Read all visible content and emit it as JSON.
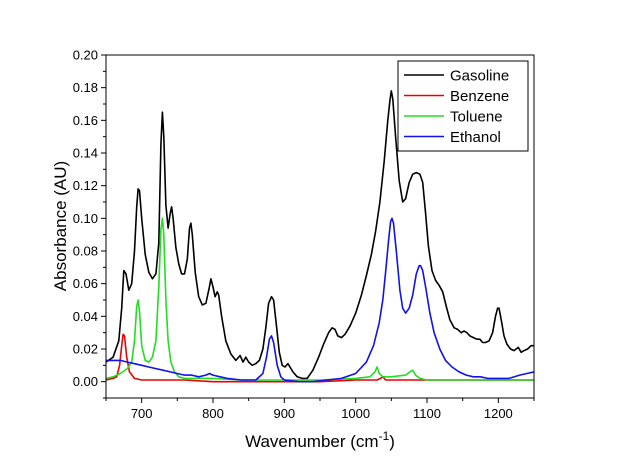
{
  "chart_data": {
    "type": "line",
    "title": "",
    "xlabel": "Wavenumber (cm",
    "xlabel_sup": "-1",
    "xlabel_end": ")",
    "ylabel": "Absorbance (AU)",
    "xlim": [
      650,
      1250
    ],
    "ylim": [
      -0.01,
      0.2
    ],
    "x_ticks": [
      700,
      800,
      900,
      1000,
      1100,
      1200
    ],
    "x_tick_labels": [
      "700",
      "800",
      "900",
      "1000",
      "1100",
      "1200"
    ],
    "y_ticks": [
      0.0,
      0.02,
      0.04,
      0.06,
      0.08,
      0.1,
      0.12,
      0.14,
      0.16,
      0.18,
      0.2
    ],
    "y_tick_labels": [
      "0.00",
      "0.02",
      "0.04",
      "0.06",
      "0.08",
      "0.10",
      "0.12",
      "0.14",
      "0.16",
      "0.18",
      "0.20"
    ],
    "grid": false,
    "legend_position": "top-right",
    "series": [
      {
        "name": "Gasoline",
        "color": "#000000",
        "points": [
          [
            650,
            0.012
          ],
          [
            660,
            0.015
          ],
          [
            668,
            0.025
          ],
          [
            672,
            0.045
          ],
          [
            675,
            0.068
          ],
          [
            678,
            0.066
          ],
          [
            682,
            0.056
          ],
          [
            686,
            0.06
          ],
          [
            690,
            0.08
          ],
          [
            693,
            0.107
          ],
          [
            695,
            0.118
          ],
          [
            697,
            0.117
          ],
          [
            700,
            0.1
          ],
          [
            705,
            0.078
          ],
          [
            710,
            0.067
          ],
          [
            715,
            0.063
          ],
          [
            720,
            0.066
          ],
          [
            724,
            0.085
          ],
          [
            727,
            0.145
          ],
          [
            729,
            0.165
          ],
          [
            731,
            0.15
          ],
          [
            734,
            0.108
          ],
          [
            737,
            0.094
          ],
          [
            740,
            0.103
          ],
          [
            742,
            0.107
          ],
          [
            744,
            0.1
          ],
          [
            748,
            0.082
          ],
          [
            752,
            0.072
          ],
          [
            756,
            0.066
          ],
          [
            760,
            0.066
          ],
          [
            764,
            0.075
          ],
          [
            767,
            0.094
          ],
          [
            769,
            0.097
          ],
          [
            771,
            0.09
          ],
          [
            775,
            0.067
          ],
          [
            780,
            0.052
          ],
          [
            785,
            0.047
          ],
          [
            790,
            0.048
          ],
          [
            795,
            0.058
          ],
          [
            797,
            0.063
          ],
          [
            800,
            0.058
          ],
          [
            803,
            0.052
          ],
          [
            806,
            0.055
          ],
          [
            808,
            0.053
          ],
          [
            812,
            0.04
          ],
          [
            818,
            0.025
          ],
          [
            825,
            0.017
          ],
          [
            832,
            0.013
          ],
          [
            838,
            0.016
          ],
          [
            842,
            0.012
          ],
          [
            846,
            0.015
          ],
          [
            850,
            0.012
          ],
          [
            855,
            0.01
          ],
          [
            860,
            0.011
          ],
          [
            865,
            0.013
          ],
          [
            870,
            0.02
          ],
          [
            874,
            0.033
          ],
          [
            878,
            0.048
          ],
          [
            882,
            0.052
          ],
          [
            885,
            0.05
          ],
          [
            889,
            0.034
          ],
          [
            893,
            0.018
          ],
          [
            897,
            0.01
          ],
          [
            901,
            0.009
          ],
          [
            905,
            0.011
          ],
          [
            908,
            0.009
          ],
          [
            912,
            0.006
          ],
          [
            918,
            0.003
          ],
          [
            925,
            0.002
          ],
          [
            932,
            0.002
          ],
          [
            940,
            0.007
          ],
          [
            948,
            0.015
          ],
          [
            955,
            0.023
          ],
          [
            962,
            0.03
          ],
          [
            967,
            0.033
          ],
          [
            971,
            0.032
          ],
          [
            975,
            0.028
          ],
          [
            980,
            0.027
          ],
          [
            985,
            0.029
          ],
          [
            992,
            0.034
          ],
          [
            1000,
            0.042
          ],
          [
            1008,
            0.053
          ],
          [
            1015,
            0.065
          ],
          [
            1022,
            0.078
          ],
          [
            1028,
            0.092
          ],
          [
            1034,
            0.11
          ],
          [
            1040,
            0.135
          ],
          [
            1045,
            0.16
          ],
          [
            1048,
            0.172
          ],
          [
            1050,
            0.178
          ],
          [
            1052,
            0.173
          ],
          [
            1056,
            0.15
          ],
          [
            1061,
            0.123
          ],
          [
            1066,
            0.11
          ],
          [
            1070,
            0.112
          ],
          [
            1075,
            0.122
          ],
          [
            1080,
            0.127
          ],
          [
            1085,
            0.128
          ],
          [
            1090,
            0.127
          ],
          [
            1094,
            0.122
          ],
          [
            1098,
            0.103
          ],
          [
            1102,
            0.083
          ],
          [
            1107,
            0.068
          ],
          [
            1112,
            0.062
          ],
          [
            1117,
            0.059
          ],
          [
            1122,
            0.055
          ],
          [
            1127,
            0.046
          ],
          [
            1132,
            0.038
          ],
          [
            1138,
            0.033
          ],
          [
            1143,
            0.032
          ],
          [
            1148,
            0.03
          ],
          [
            1152,
            0.031
          ],
          [
            1156,
            0.03
          ],
          [
            1160,
            0.028
          ],
          [
            1165,
            0.027
          ],
          [
            1170,
            0.026
          ],
          [
            1174,
            0.026
          ],
          [
            1178,
            0.024
          ],
          [
            1182,
            0.024
          ],
          [
            1187,
            0.025
          ],
          [
            1192,
            0.03
          ],
          [
            1196,
            0.04
          ],
          [
            1199,
            0.045
          ],
          [
            1201,
            0.045
          ],
          [
            1204,
            0.038
          ],
          [
            1208,
            0.028
          ],
          [
            1212,
            0.023
          ],
          [
            1217,
            0.02
          ],
          [
            1222,
            0.019
          ],
          [
            1228,
            0.021
          ],
          [
            1232,
            0.018
          ],
          [
            1236,
            0.019
          ],
          [
            1241,
            0.02
          ],
          [
            1246,
            0.022
          ],
          [
            1250,
            0.022
          ]
        ]
      },
      {
        "name": "Benzene",
        "color": "#ee0000",
        "points": [
          [
            650,
            0.001
          ],
          [
            660,
            0.002
          ],
          [
            665,
            0.003
          ],
          [
            669,
            0.01
          ],
          [
            672,
            0.022
          ],
          [
            674,
            0.029
          ],
          [
            676,
            0.028
          ],
          [
            679,
            0.015
          ],
          [
            683,
            0.006
          ],
          [
            690,
            0.002
          ],
          [
            700,
            0.001
          ],
          [
            720,
            0.001
          ],
          [
            760,
            0.001
          ],
          [
            800,
            0.0
          ],
          [
            850,
            0.0
          ],
          [
            900,
            0.0
          ],
          [
            950,
            0.0
          ],
          [
            1000,
            0.001
          ],
          [
            1020,
            0.001
          ],
          [
            1030,
            0.001
          ],
          [
            1035,
            0.002
          ],
          [
            1038,
            0.003
          ],
          [
            1042,
            0.001
          ],
          [
            1060,
            0.001
          ],
          [
            1100,
            0.001
          ],
          [
            1150,
            0.001
          ],
          [
            1200,
            0.001
          ],
          [
            1250,
            0.001
          ]
        ]
      },
      {
        "name": "Toluene",
        "color": "#22dd22",
        "points": [
          [
            650,
            0.002
          ],
          [
            660,
            0.003
          ],
          [
            670,
            0.005
          ],
          [
            680,
            0.008
          ],
          [
            686,
            0.012
          ],
          [
            690,
            0.025
          ],
          [
            693,
            0.046
          ],
          [
            695,
            0.05
          ],
          [
            697,
            0.043
          ],
          [
            700,
            0.022
          ],
          [
            705,
            0.013
          ],
          [
            710,
            0.012
          ],
          [
            715,
            0.015
          ],
          [
            720,
            0.025
          ],
          [
            724,
            0.058
          ],
          [
            727,
            0.093
          ],
          [
            729,
            0.1
          ],
          [
            731,
            0.09
          ],
          [
            734,
            0.05
          ],
          [
            737,
            0.025
          ],
          [
            741,
            0.012
          ],
          [
            746,
            0.006
          ],
          [
            752,
            0.003
          ],
          [
            760,
            0.002
          ],
          [
            780,
            0.002
          ],
          [
            800,
            0.002
          ],
          [
            840,
            0.001
          ],
          [
            880,
            0.001
          ],
          [
            900,
            0.001
          ],
          [
            950,
            0.001
          ],
          [
            1000,
            0.002
          ],
          [
            1020,
            0.003
          ],
          [
            1027,
            0.006
          ],
          [
            1030,
            0.009
          ],
          [
            1033,
            0.005
          ],
          [
            1038,
            0.003
          ],
          [
            1050,
            0.003
          ],
          [
            1070,
            0.004
          ],
          [
            1076,
            0.006
          ],
          [
            1080,
            0.007
          ],
          [
            1084,
            0.004
          ],
          [
            1090,
            0.002
          ],
          [
            1100,
            0.001
          ],
          [
            1150,
            0.001
          ],
          [
            1200,
            0.001
          ],
          [
            1250,
            0.001
          ]
        ]
      },
      {
        "name": "Ethanol",
        "color": "#1111ee",
        "points": [
          [
            650,
            0.013
          ],
          [
            660,
            0.013
          ],
          [
            670,
            0.013
          ],
          [
            680,
            0.012
          ],
          [
            690,
            0.011
          ],
          [
            700,
            0.01
          ],
          [
            710,
            0.009
          ],
          [
            720,
            0.008
          ],
          [
            730,
            0.007
          ],
          [
            740,
            0.006
          ],
          [
            750,
            0.005
          ],
          [
            760,
            0.004
          ],
          [
            770,
            0.004
          ],
          [
            780,
            0.003
          ],
          [
            790,
            0.004
          ],
          [
            795,
            0.005
          ],
          [
            800,
            0.004
          ],
          [
            810,
            0.003
          ],
          [
            820,
            0.002
          ],
          [
            840,
            0.001
          ],
          [
            860,
            0.001
          ],
          [
            870,
            0.005
          ],
          [
            875,
            0.015
          ],
          [
            879,
            0.026
          ],
          [
            882,
            0.028
          ],
          [
            885,
            0.024
          ],
          [
            890,
            0.01
          ],
          [
            895,
            0.003
          ],
          [
            900,
            0.001
          ],
          [
            920,
            0.0
          ],
          [
            940,
            0.0
          ],
          [
            960,
            0.001
          ],
          [
            980,
            0.002
          ],
          [
            1000,
            0.005
          ],
          [
            1015,
            0.012
          ],
          [
            1025,
            0.022
          ],
          [
            1033,
            0.036
          ],
          [
            1038,
            0.05
          ],
          [
            1042,
            0.067
          ],
          [
            1046,
            0.086
          ],
          [
            1049,
            0.098
          ],
          [
            1051,
            0.1
          ],
          [
            1053,
            0.097
          ],
          [
            1057,
            0.08
          ],
          [
            1062,
            0.056
          ],
          [
            1066,
            0.045
          ],
          [
            1070,
            0.042
          ],
          [
            1075,
            0.045
          ],
          [
            1080,
            0.053
          ],
          [
            1085,
            0.066
          ],
          [
            1089,
            0.071
          ],
          [
            1091,
            0.071
          ],
          [
            1094,
            0.068
          ],
          [
            1098,
            0.058
          ],
          [
            1104,
            0.042
          ],
          [
            1110,
            0.03
          ],
          [
            1118,
            0.02
          ],
          [
            1126,
            0.013
          ],
          [
            1135,
            0.009
          ],
          [
            1145,
            0.006
          ],
          [
            1155,
            0.004
          ],
          [
            1165,
            0.003
          ],
          [
            1175,
            0.003
          ],
          [
            1185,
            0.002
          ],
          [
            1200,
            0.002
          ],
          [
            1215,
            0.002
          ],
          [
            1230,
            0.004
          ],
          [
            1240,
            0.005
          ],
          [
            1250,
            0.006
          ]
        ]
      }
    ]
  }
}
